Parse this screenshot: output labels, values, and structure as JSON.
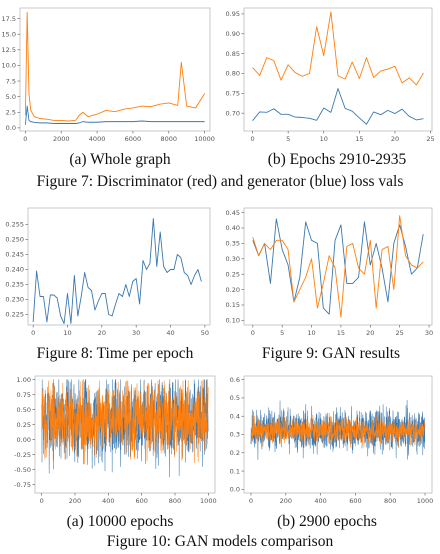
{
  "colors": {
    "blue": "#3a78b0",
    "orange": "#ff7f0e"
  },
  "figures": {
    "fig7": {
      "caption": "Figure 7: Discriminator (red) and generator (blue) loss vals",
      "sub_a": "(a) Whole graph",
      "sub_b": "(b) Epochs 2910-2935"
    },
    "fig8": {
      "caption": "Figure 8: Time per epoch"
    },
    "fig9": {
      "caption": "Figure 9: GAN results"
    },
    "fig10": {
      "caption": "Figure 10: GAN models comparison",
      "sub_a": "(a) 10000 epochs",
      "sub_b": "(b) 2900 epochs"
    }
  },
  "chart_data": [
    {
      "id": "fig7a",
      "type": "line",
      "xlim": [
        -300,
        10300
      ],
      "ylim": [
        -0.5,
        19.2
      ],
      "xticks": [
        0,
        2000,
        4000,
        6000,
        8000,
        10000
      ],
      "yticks": [
        0.0,
        2.5,
        5.0,
        7.5,
        10.0,
        12.5,
        15.0,
        17.5
      ],
      "ytick_labels": [
        "0.0",
        "2.5",
        "5.0",
        "7.5",
        "10.0",
        "12.5",
        "15.0",
        "17.5"
      ],
      "series": [
        {
          "color_key": "orange",
          "x": [
            0,
            100,
            200,
            300,
            500,
            800,
            1200,
            1600,
            2000,
            2400,
            2800,
            3000,
            3200,
            3500,
            4000,
            4500,
            5000,
            5500,
            6000,
            6500,
            7000,
            7500,
            8000,
            8500,
            8700,
            9000,
            9500,
            10000
          ],
          "values": [
            2.0,
            18.5,
            5.5,
            2.8,
            1.8,
            1.5,
            1.4,
            1.2,
            1.2,
            1.1,
            1.2,
            2.0,
            2.5,
            1.8,
            2.2,
            2.8,
            2.6,
            3.0,
            3.2,
            3.5,
            3.4,
            3.8,
            4.0,
            3.6,
            10.5,
            3.5,
            3.2,
            5.5
          ]
        },
        {
          "color_key": "blue",
          "x": [
            0,
            100,
            200,
            300,
            500,
            800,
            1200,
            1600,
            2000,
            2400,
            2800,
            3000,
            3200,
            3500,
            4000,
            4500,
            5000,
            5500,
            6000,
            6500,
            7000,
            7500,
            8000,
            8500,
            9000,
            9500,
            10000
          ],
          "values": [
            0.5,
            3.5,
            1.2,
            1.0,
            0.9,
            0.8,
            0.8,
            0.7,
            0.7,
            0.7,
            0.7,
            0.8,
            1.0,
            0.9,
            0.9,
            1.0,
            1.0,
            1.0,
            1.0,
            1.1,
            1.0,
            1.0,
            1.0,
            1.0,
            1.0,
            1.0,
            1.0
          ]
        }
      ]
    },
    {
      "id": "fig7b",
      "type": "line",
      "xlim": [
        -1.2,
        25.2
      ],
      "ylim": [
        0.655,
        0.965
      ],
      "xticks": [
        0,
        5,
        10,
        15,
        20,
        25
      ],
      "yticks": [
        0.7,
        0.75,
        0.8,
        0.85,
        0.9,
        0.95
      ],
      "ytick_labels": [
        "0.70",
        "0.75",
        "0.80",
        "0.85",
        "0.90",
        "0.95"
      ],
      "series": [
        {
          "color_key": "orange",
          "x": [
            0,
            1,
            2,
            3,
            4,
            5,
            6,
            7,
            8,
            9,
            10,
            11,
            12,
            13,
            14,
            15,
            16,
            17,
            18,
            19,
            20,
            21,
            22,
            23,
            24
          ],
          "values": [
            0.815,
            0.795,
            0.84,
            0.832,
            0.783,
            0.822,
            0.802,
            0.793,
            0.8,
            0.918,
            0.845,
            0.955,
            0.794,
            0.786,
            0.829,
            0.787,
            0.84,
            0.79,
            0.806,
            0.811,
            0.818,
            0.776,
            0.789,
            0.771,
            0.801
          ]
        },
        {
          "color_key": "blue",
          "x": [
            0,
            1,
            2,
            3,
            4,
            5,
            6,
            7,
            8,
            9,
            10,
            11,
            12,
            13,
            14,
            15,
            16,
            17,
            18,
            19,
            20,
            21,
            22,
            23,
            24
          ],
          "values": [
            0.681,
            0.703,
            0.702,
            0.711,
            0.697,
            0.697,
            0.69,
            0.689,
            0.687,
            0.682,
            0.713,
            0.702,
            0.762,
            0.712,
            0.705,
            0.688,
            0.672,
            0.703,
            0.696,
            0.707,
            0.699,
            0.71,
            0.692,
            0.683,
            0.686
          ]
        }
      ]
    },
    {
      "id": "fig8",
      "type": "line",
      "xlim": [
        -1.5,
        51.5
      ],
      "ylim": [
        0.2215,
        0.2605
      ],
      "xticks": [
        0,
        10,
        20,
        30,
        40,
        50
      ],
      "yticks": [
        0.225,
        0.23,
        0.235,
        0.24,
        0.245,
        0.25,
        0.255
      ],
      "ytick_labels": [
        "0.225",
        "0.230",
        "0.235",
        "0.240",
        "0.245",
        "0.250",
        "0.255"
      ],
      "series": [
        {
          "color_key": "blue",
          "x": [
            0,
            1,
            2,
            3,
            4,
            5,
            6,
            7,
            8,
            9,
            10,
            11,
            12,
            13,
            14,
            15,
            16,
            17,
            18,
            19,
            20,
            21,
            22,
            23,
            24,
            25,
            26,
            27,
            28,
            29,
            30,
            31,
            32,
            33,
            34,
            35,
            36,
            37,
            38,
            39,
            40,
            41,
            42,
            43,
            44,
            45,
            46,
            47,
            48,
            49
          ],
          "values": [
            0.2225,
            0.2395,
            0.231,
            0.231,
            0.2225,
            0.2315,
            0.2315,
            0.2305,
            0.2245,
            0.222,
            0.232,
            0.222,
            0.238,
            0.2245,
            0.231,
            0.239,
            0.234,
            0.233,
            0.2265,
            0.2295,
            0.232,
            0.232,
            0.225,
            0.2245,
            0.2285,
            0.232,
            0.231,
            0.235,
            0.231,
            0.236,
            0.237,
            0.2285,
            0.243,
            0.24,
            0.242,
            0.257,
            0.241,
            0.2525,
            0.241,
            0.239,
            0.24,
            0.24,
            0.245,
            0.244,
            0.239,
            0.238,
            0.235,
            0.238,
            0.24,
            0.236
          ]
        }
      ]
    },
    {
      "id": "fig9",
      "type": "line",
      "xlim": [
        -1.5,
        30.5
      ],
      "ylim": [
        0.085,
        0.465
      ],
      "xticks": [
        0,
        5,
        10,
        15,
        20,
        25,
        30
      ],
      "yticks": [
        0.1,
        0.15,
        0.2,
        0.25,
        0.3,
        0.35,
        0.4,
        0.45
      ],
      "ytick_labels": [
        "0.10",
        "0.15",
        "0.20",
        "0.25",
        "0.30",
        "0.35",
        "0.40",
        "0.45"
      ],
      "series": [
        {
          "color_key": "blue",
          "x": [
            0,
            1,
            2,
            3,
            4,
            5,
            6,
            7,
            8,
            9,
            10,
            11,
            12,
            13,
            14,
            15,
            16,
            17,
            18,
            19,
            20,
            21,
            22,
            23,
            24,
            25,
            26,
            27,
            28,
            29
          ],
          "values": [
            0.36,
            0.31,
            0.35,
            0.22,
            0.43,
            0.33,
            0.28,
            0.16,
            0.24,
            0.42,
            0.36,
            0.35,
            0.14,
            0.12,
            0.36,
            0.41,
            0.22,
            0.22,
            0.24,
            0.42,
            0.28,
            0.35,
            0.27,
            0.16,
            0.35,
            0.41,
            0.34,
            0.25,
            0.27,
            0.38
          ]
        },
        {
          "color_key": "orange",
          "x": [
            0,
            1,
            2,
            3,
            4,
            5,
            6,
            7,
            8,
            9,
            10,
            11,
            12,
            13,
            14,
            15,
            16,
            17,
            18,
            19,
            20,
            21,
            22,
            23,
            24,
            25,
            26,
            27,
            28,
            29
          ],
          "values": [
            0.37,
            0.31,
            0.35,
            0.33,
            0.36,
            0.36,
            0.33,
            0.16,
            0.2,
            0.24,
            0.3,
            0.14,
            0.22,
            0.31,
            0.27,
            0.11,
            0.34,
            0.35,
            0.27,
            0.25,
            0.36,
            0.14,
            0.33,
            0.34,
            0.2,
            0.44,
            0.31,
            0.28,
            0.27,
            0.29
          ]
        }
      ]
    },
    {
      "id": "fig10a",
      "type": "line",
      "xlim": [
        -40,
        1040
      ],
      "ylim": [
        -0.89,
        1.06
      ],
      "xticks": [
        0,
        200,
        400,
        600,
        800,
        1000
      ],
      "yticks": [
        -0.75,
        -0.5,
        -0.25,
        0.0,
        0.25,
        0.5,
        0.75,
        1.0
      ],
      "ytick_labels": [
        "-0.75",
        "-0.50",
        "-0.25",
        "0.00",
        "0.25",
        "0.50",
        "0.75",
        "1.00"
      ],
      "noise": {
        "n": 1000,
        "seed": 7,
        "blue": [
          0.35,
          0.62,
          -0.85,
          1.0
        ],
        "orange": [
          0.35,
          0.5,
          -0.75,
          0.98
        ]
      }
    },
    {
      "id": "fig10b",
      "type": "line",
      "xlim": [
        -40,
        1040
      ],
      "ylim": [
        -0.02,
        0.62
      ],
      "xticks": [
        0,
        200,
        400,
        600,
        800,
        1000
      ],
      "yticks": [
        0.0,
        0.1,
        0.2,
        0.3,
        0.4,
        0.5,
        0.6
      ],
      "ytick_labels": [
        "0.0",
        "0.1",
        "0.2",
        "0.3",
        "0.4",
        "0.5",
        "0.6"
      ],
      "noise": {
        "n": 1000,
        "seed": 11,
        "blue": [
          0.32,
          0.1,
          0.0,
          0.55
        ],
        "orange": [
          0.32,
          0.06,
          0.15,
          0.45
        ]
      }
    }
  ]
}
